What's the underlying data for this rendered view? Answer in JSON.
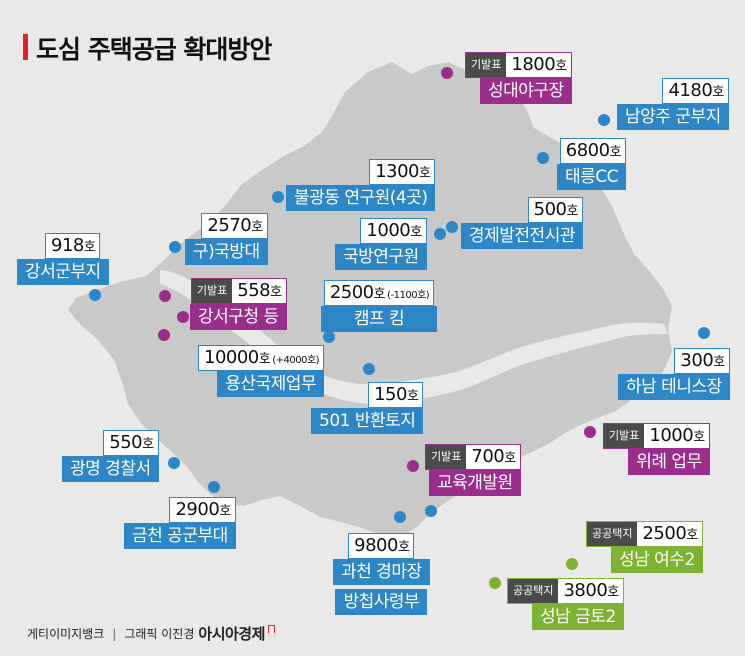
{
  "title": "도심 주택공급 확대방안",
  "colors": {
    "blue": "#2d86c5",
    "purple": "#9b2e8d",
    "green": "#7db233",
    "land": "#c9c9c9",
    "river": "#e9e9e9",
    "background": "#e9e9e9",
    "accent": "#e21f26"
  },
  "legend_tags": {
    "development_agency": "기발표",
    "public_land": "공공택지"
  },
  "sites": [
    {
      "name": "성대야구장",
      "count": "1800",
      "unit": "호",
      "tag": "기발표",
      "color": "purple"
    },
    {
      "name": "남양주 군부지",
      "count": "4180",
      "unit": "호",
      "color": "blue"
    },
    {
      "name": "태릉CC",
      "count": "6800",
      "unit": "호",
      "color": "blue"
    },
    {
      "name": "불광동 연구원(4곳)",
      "count": "1300",
      "unit": "호",
      "color": "blue"
    },
    {
      "name": "경제발전전시관",
      "count": "500",
      "unit": "호",
      "color": "blue"
    },
    {
      "name": "구)국방대",
      "count": "2570",
      "unit": "호",
      "color": "blue"
    },
    {
      "name": "국방연구원",
      "count": "1000",
      "unit": "호",
      "color": "blue"
    },
    {
      "name": "강서군부지",
      "count": "918",
      "unit": "호",
      "color": "blue"
    },
    {
      "name": "강서구청 등",
      "count": "558",
      "unit": "호",
      "tag": "기발표",
      "color": "purple"
    },
    {
      "name": "캠프 킴",
      "count": "2500",
      "unit": "호",
      "note": "(-1100호)",
      "color": "blue"
    },
    {
      "name": "용산국제업무",
      "count": "10000",
      "unit": "호",
      "note": "(+4000호)",
      "color": "blue"
    },
    {
      "name": "하남 테니스장",
      "count": "300",
      "unit": "호",
      "color": "blue"
    },
    {
      "name": "501 반환토지",
      "count": "150",
      "unit": "호",
      "color": "blue"
    },
    {
      "name": "광명 경찰서",
      "count": "550",
      "unit": "호",
      "color": "blue"
    },
    {
      "name": "위례 업무",
      "count": "1000",
      "unit": "호",
      "tag": "기발표",
      "color": "purple"
    },
    {
      "name": "교육개발원",
      "count": "700",
      "unit": "호",
      "tag": "기발표",
      "color": "purple"
    },
    {
      "name": "금천 공군부대",
      "count": "2900",
      "unit": "호",
      "color": "blue"
    },
    {
      "name": "성남 여수2",
      "count": "2500",
      "unit": "호",
      "tag": "공공택지",
      "color": "green"
    },
    {
      "name": "과천 경마장",
      "name2": "방첩사령부",
      "count": "9800",
      "unit": "호",
      "color": "blue"
    },
    {
      "name": "성남 금토2",
      "count": "3800",
      "unit": "호",
      "tag": "공공택지",
      "color": "green"
    }
  ],
  "footer": {
    "photo_credit": "게티이미지뱅크",
    "separator": "|",
    "graphic_credit": "그래픽 이진경",
    "publisher": "아시아경제"
  }
}
